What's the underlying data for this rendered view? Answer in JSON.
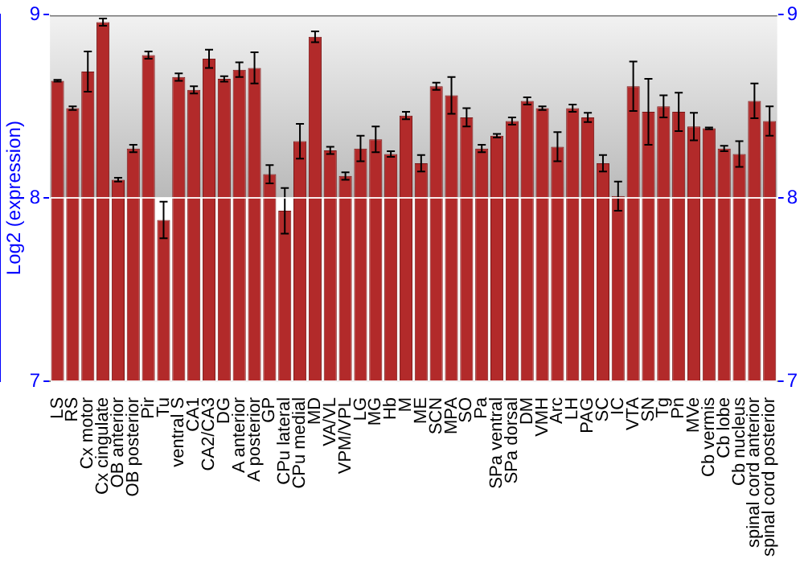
{
  "chart_data": {
    "type": "bar",
    "ylabel": "Log2 (expression)",
    "categories": [
      "LS",
      "RS",
      "Cx motor",
      "Cx cingulate",
      "OB anterior",
      "OB posterior",
      "Pir",
      "Tu",
      "ventral S",
      "CA1",
      "CA2/CA3",
      "DG",
      "A anterior",
      "A posterior",
      "GP",
      "CPu lateral",
      "CPu medial",
      "MD",
      "VA/VL",
      "VPM/VPL",
      "LG",
      "MG",
      "Hb",
      "M",
      "ME",
      "SCN",
      "MPA",
      "SO",
      "Pa",
      "SPa ventral",
      "SPa dorsal",
      "DM",
      "VMH",
      "Arc",
      "LH",
      "PAG",
      "SC",
      "IC",
      "VTA",
      "SN",
      "Tg",
      "Pn",
      "MVe",
      "Cb vermis",
      "Cb lobe",
      "Cb nucleus",
      "spinal cord anterior",
      "spinal cord posterior"
    ],
    "values": [
      8.64,
      8.49,
      8.69,
      8.96,
      8.1,
      8.27,
      8.78,
      7.88,
      8.66,
      8.59,
      8.76,
      8.65,
      8.7,
      8.71,
      8.13,
      7.93,
      8.31,
      8.88,
      8.26,
      8.12,
      8.27,
      8.32,
      8.24,
      8.45,
      8.19,
      8.61,
      8.56,
      8.44,
      8.27,
      8.34,
      8.42,
      8.53,
      8.49,
      8.28,
      8.49,
      8.44,
      8.19,
      8.01,
      8.61,
      8.47,
      8.5,
      8.47,
      8.39,
      8.38,
      8.27,
      8.24,
      8.53,
      8.42
    ],
    "errors": [
      0.005,
      0.01,
      0.11,
      0.02,
      0.01,
      0.02,
      0.02,
      0.1,
      0.02,
      0.02,
      0.05,
      0.015,
      0.04,
      0.085,
      0.05,
      0.125,
      0.095,
      0.03,
      0.02,
      0.02,
      0.07,
      0.07,
      0.015,
      0.02,
      0.045,
      0.02,
      0.1,
      0.05,
      0.02,
      0.01,
      0.02,
      0.02,
      0.01,
      0.08,
      0.02,
      0.025,
      0.045,
      0.08,
      0.135,
      0.18,
      0.06,
      0.105,
      0.075,
      0.005,
      0.015,
      0.07,
      0.095,
      0.08
    ],
    "color": "#b22a2a",
    "ylim": [
      7,
      9
    ],
    "yticks": [
      7,
      8,
      9
    ],
    "y2lim": [
      7,
      9
    ],
    "y2ticks": [
      7,
      8,
      9
    ],
    "grid": "y",
    "legend": false
  }
}
